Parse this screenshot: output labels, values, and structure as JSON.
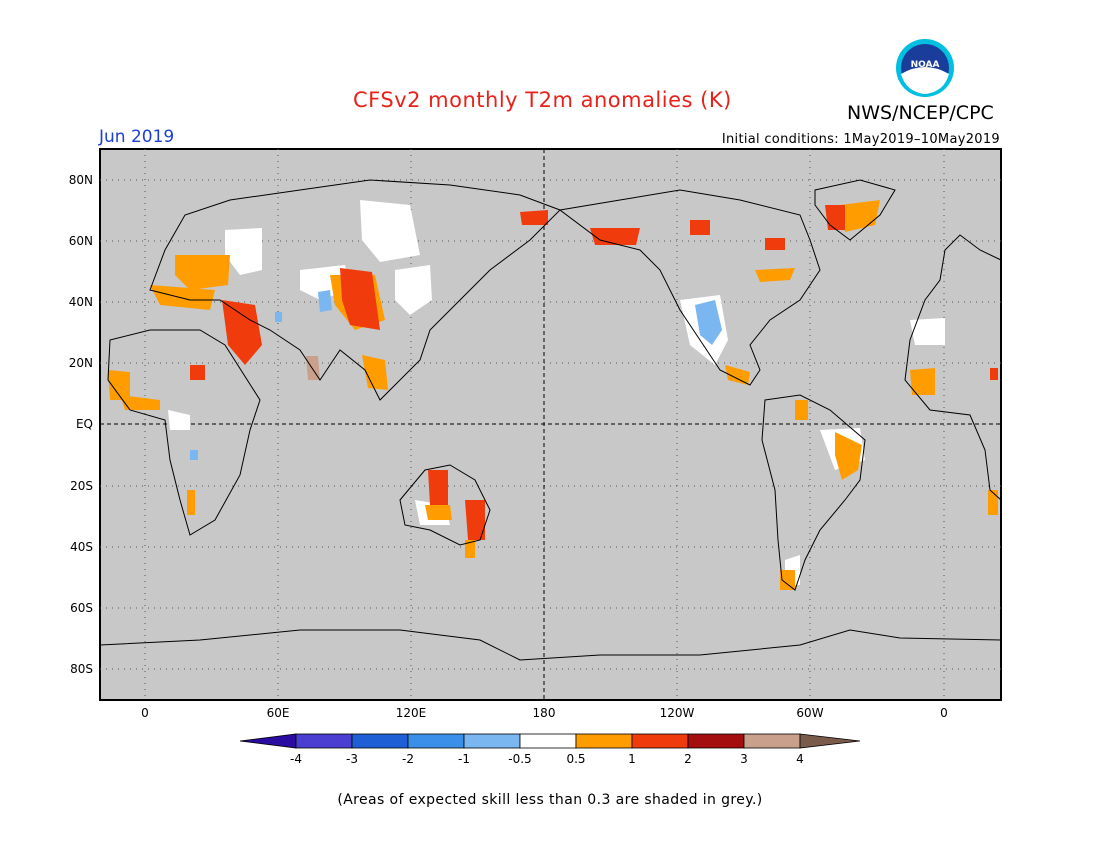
{
  "title": "CFSv2 monthly T2m anomalies (K)",
  "agency": "NWS/NCEP/CPC",
  "logo_text": "NOAA",
  "month_label": "Jun 2019",
  "initial_conditions": "Initial conditions: 1May2019–10May2019",
  "footnote": "(Areas of expected skill less than 0.3 are shaded in grey.)",
  "colors": {
    "background_grey": "#c8c8c8",
    "title_red": "#e8221a",
    "month_blue": "#1c3fd8"
  },
  "lat_labels": [
    "80N",
    "60N",
    "40N",
    "20N",
    "EQ",
    "20S",
    "40S",
    "60S",
    "80S"
  ],
  "lon_labels": [
    "0",
    "60E",
    "120E",
    "180",
    "120W",
    "60W",
    "0"
  ],
  "legend": {
    "labels": [
      "-4",
      "-3",
      "-2",
      "-1",
      "-0.5",
      "0.5",
      "1",
      "2",
      "3",
      "4"
    ],
    "colors": [
      "#2a0ca0",
      "#4a3fd0",
      "#1e5fd6",
      "#3c8fe8",
      "#7ab6f0",
      "#ffffff",
      "#ff9d00",
      "#f03c0c",
      "#a50e0e",
      "#c8a08c",
      "#7a5a4a"
    ]
  }
}
